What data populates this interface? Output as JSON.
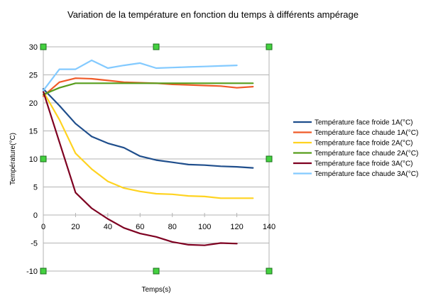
{
  "chart_data": {
    "type": "line",
    "title": "Variation de la température en fonction du temps à différents ampérage",
    "xlabel": "Temps(s)",
    "ylabel": "Température(°C)",
    "xlim": [
      0,
      140
    ],
    "ylim": [
      -10,
      30
    ],
    "xticks": [
      0,
      20,
      40,
      60,
      80,
      100,
      120,
      140
    ],
    "yticks": [
      -10,
      -5,
      0,
      5,
      10,
      15,
      20,
      25,
      30
    ],
    "grid": "horizontal",
    "legend_position": "right",
    "series": [
      {
        "name": "Température face froide 1A(°C)",
        "color": "#1f4e8c",
        "x": [
          0,
          10,
          20,
          30,
          40,
          50,
          60,
          70,
          80,
          90,
          100,
          110,
          120,
          130
        ],
        "y": [
          22.5,
          19.5,
          16.3,
          14.0,
          12.8,
          12.0,
          10.5,
          9.8,
          9.4,
          9.0,
          8.9,
          8.7,
          8.6,
          8.4
        ]
      },
      {
        "name": "Température face chaude 1A(°C)",
        "color": "#f05a28",
        "x": [
          0,
          10,
          20,
          30,
          40,
          50,
          60,
          70,
          80,
          90,
          100,
          110,
          120,
          130
        ],
        "y": [
          21.2,
          23.7,
          24.4,
          24.3,
          24.0,
          23.7,
          23.6,
          23.5,
          23.3,
          23.2,
          23.1,
          23.0,
          22.7,
          22.9
        ]
      },
      {
        "name": "Température face froide 2A(°C)",
        "color": "#ffd320",
        "x": [
          0,
          10,
          20,
          30,
          40,
          50,
          60,
          70,
          80,
          90,
          100,
          110,
          120,
          130
        ],
        "y": [
          22.0,
          17.0,
          11.0,
          8.2,
          6.0,
          4.8,
          4.2,
          3.8,
          3.7,
          3.4,
          3.3,
          3.0,
          3.0,
          3.0
        ]
      },
      {
        "name": "Température face chaude 2A(°C)",
        "color": "#579d1c",
        "x": [
          0,
          10,
          20,
          30,
          40,
          50,
          60,
          70,
          80,
          90,
          100,
          110,
          120,
          130
        ],
        "y": [
          21.5,
          22.7,
          23.5,
          23.5,
          23.5,
          23.5,
          23.5,
          23.5,
          23.5,
          23.5,
          23.5,
          23.5,
          23.5,
          23.5
        ]
      },
      {
        "name": "Température face froide 3A(°C)",
        "color": "#7e0021",
        "x": [
          0,
          10,
          20,
          30,
          40,
          50,
          60,
          70,
          80,
          90,
          100,
          110,
          120
        ],
        "y": [
          22.0,
          13.0,
          4.0,
          1.2,
          -0.7,
          -2.3,
          -3.3,
          -3.9,
          -4.8,
          -5.3,
          -5.4,
          -5.0,
          -5.1
        ]
      },
      {
        "name": "Température face chaude 3A(°C)",
        "color": "#83caff",
        "x": [
          0,
          10,
          20,
          30,
          40,
          50,
          60,
          70,
          80,
          90,
          100,
          110,
          120
        ],
        "y": [
          22.2,
          26.0,
          26.0,
          27.6,
          26.2,
          26.7,
          27.1,
          26.2,
          26.3,
          26.4,
          26.5,
          26.6,
          26.7
        ]
      }
    ]
  }
}
